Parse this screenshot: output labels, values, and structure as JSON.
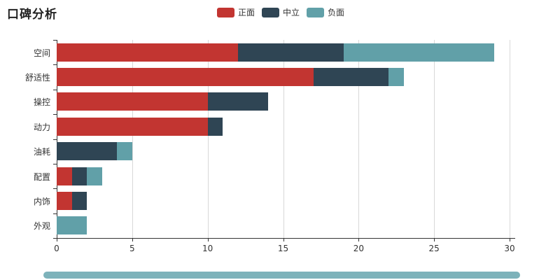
{
  "chart_data": {
    "type": "bar",
    "orientation": "horizontal",
    "stacked": true,
    "title": "口碑分析",
    "categories": [
      "空间",
      "舒适性",
      "操控",
      "动力",
      "油耗",
      "配置",
      "内饰",
      "外观"
    ],
    "series": [
      {
        "name": "正面",
        "color": "#c23531",
        "values": [
          12,
          17,
          10,
          10,
          0,
          1,
          1,
          0
        ]
      },
      {
        "name": "中立",
        "color": "#2f4554",
        "values": [
          7,
          5,
          4,
          1,
          4,
          1,
          1,
          0
        ]
      },
      {
        "name": "负面",
        "color": "#61a0a8",
        "values": [
          10,
          1,
          0,
          0,
          1,
          1,
          0,
          2
        ]
      }
    ],
    "totals": [
      29,
      23,
      14,
      11,
      5,
      3,
      2,
      2
    ],
    "xlabel": "",
    "ylabel": "",
    "xlim": [
      0,
      30
    ],
    "xticks": [
      0,
      5,
      10,
      15,
      20,
      25,
      30
    ],
    "grid": true,
    "legend_position": "top-center"
  },
  "datazoom": {
    "fill": "#7db2ba"
  }
}
